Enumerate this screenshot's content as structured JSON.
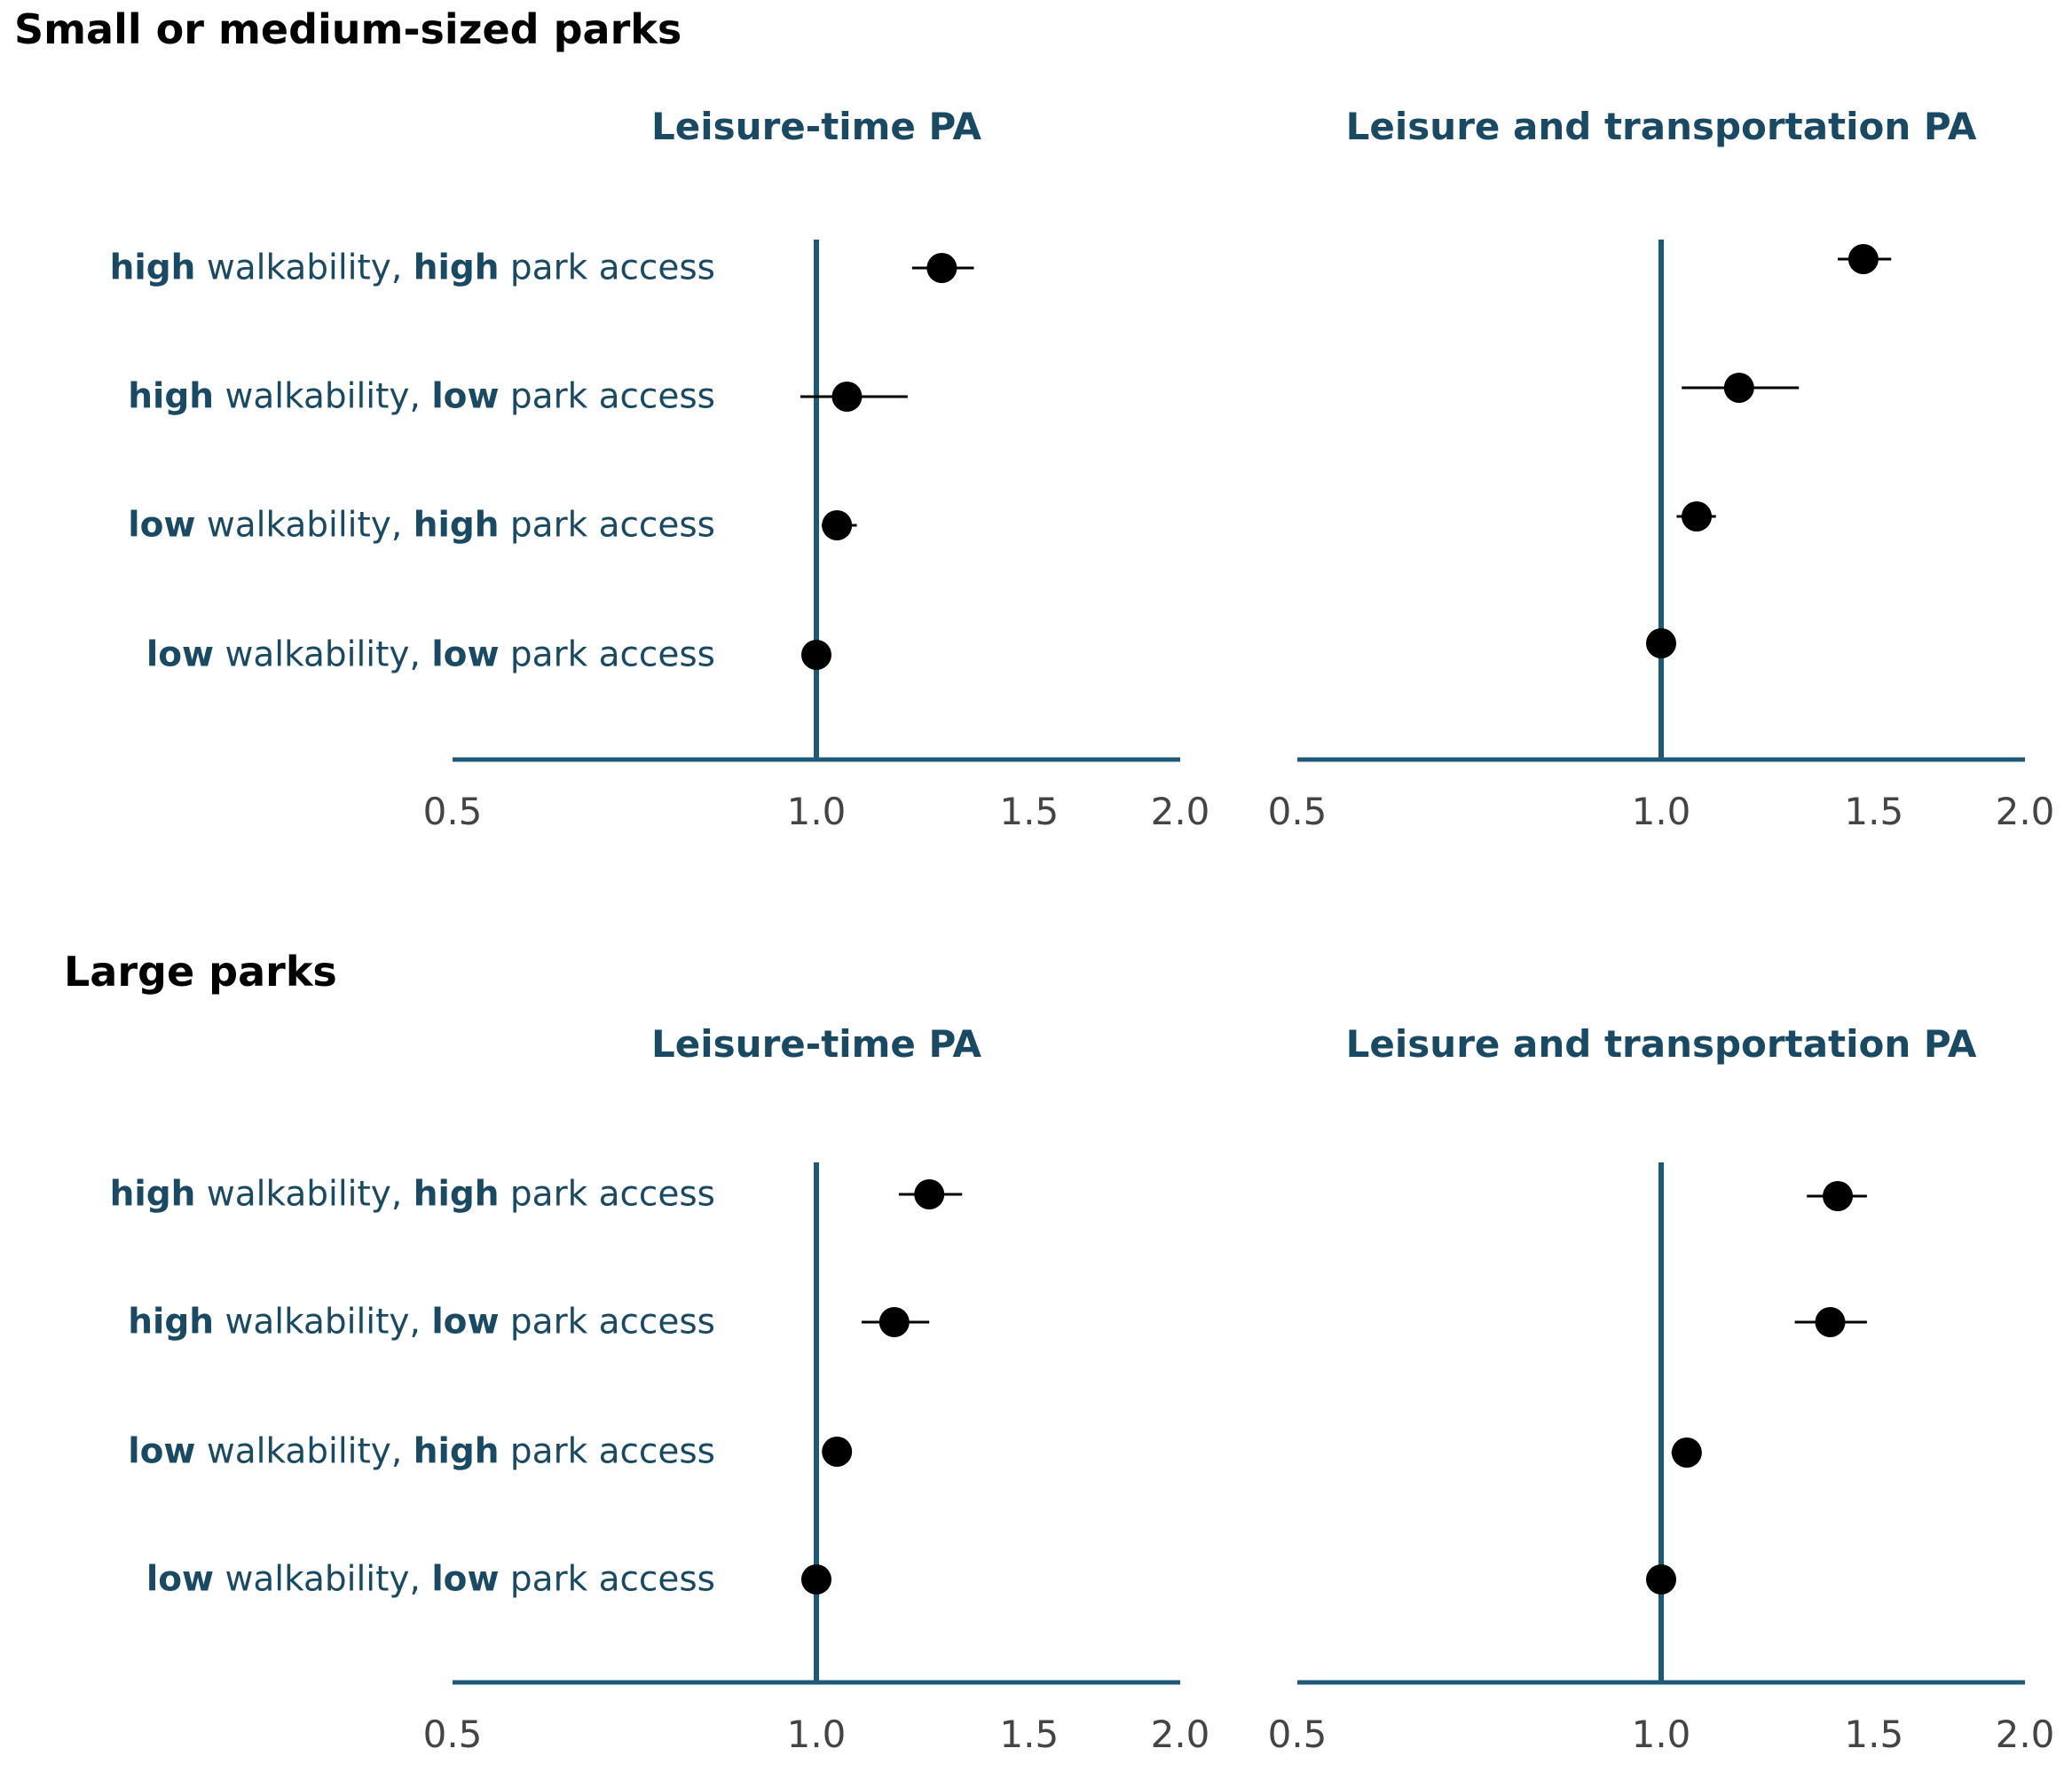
{
  "colors": {
    "axis": "#1e5a78",
    "label_text": "#1a4a63",
    "point": "#000000",
    "whisker": "#000000"
  },
  "row_label_parts": {
    "walkability_word": " walkability, ",
    "park_access_word": " park access"
  },
  "chart_data": [
    {
      "type": "scatter",
      "section": "Small or medium-sized parks",
      "title": "Leisure-time PA",
      "scale": "log",
      "xlim": [
        0.5,
        2.0
      ],
      "x_ticks": [
        "0.5",
        "1.0",
        "1.5",
        "2.0"
      ],
      "reference_line": 1.0,
      "categories": [
        {
          "walkability": "high",
          "park_access": "high"
        },
        {
          "walkability": "high",
          "park_access": "low"
        },
        {
          "walkability": "low",
          "park_access": "high"
        },
        {
          "walkability": "low",
          "park_access": "low"
        }
      ],
      "estimates": [
        1.27,
        1.06,
        1.04,
        1.0
      ],
      "ci_low": [
        1.2,
        0.97,
        1.01,
        1.0
      ],
      "ci_high": [
        1.35,
        1.19,
        1.08,
        1.0
      ]
    },
    {
      "type": "scatter",
      "section": "Small or medium-sized parks",
      "title": "Leisure and transportation PA",
      "scale": "log",
      "xlim": [
        0.5,
        2.0
      ],
      "x_ticks": [
        "0.5",
        "1.0",
        "1.5",
        "2.0"
      ],
      "reference_line": 1.0,
      "categories": [
        {
          "walkability": "high",
          "park_access": "high"
        },
        {
          "walkability": "high",
          "park_access": "low"
        },
        {
          "walkability": "low",
          "park_access": "high"
        },
        {
          "walkability": "low",
          "park_access": "low"
        }
      ],
      "estimates": [
        1.47,
        1.16,
        1.07,
        1.0
      ],
      "ci_low": [
        1.4,
        1.04,
        1.03,
        1.0
      ],
      "ci_high": [
        1.55,
        1.3,
        1.11,
        1.0
      ]
    },
    {
      "type": "scatter",
      "section": "Large parks",
      "title": "Leisure-time PA",
      "scale": "log",
      "xlim": [
        0.5,
        2.0
      ],
      "x_ticks": [
        "0.5",
        "1.0",
        "1.5",
        "2.0"
      ],
      "reference_line": 1.0,
      "categories": [
        {
          "walkability": "high",
          "park_access": "high"
        },
        {
          "walkability": "high",
          "park_access": "low"
        },
        {
          "walkability": "low",
          "park_access": "high"
        },
        {
          "walkability": "low",
          "park_access": "low"
        }
      ],
      "estimates": [
        1.24,
        1.16,
        1.04,
        1.0
      ],
      "ci_low": [
        1.17,
        1.09,
        1.02,
        1.0
      ],
      "ci_high": [
        1.32,
        1.24,
        1.07,
        1.0
      ]
    },
    {
      "type": "scatter",
      "section": "Large parks",
      "title": "Leisure and transportation PA",
      "scale": "log",
      "xlim": [
        0.5,
        2.0
      ],
      "x_ticks": [
        "0.5",
        "1.0",
        "1.5",
        "2.0"
      ],
      "reference_line": 1.0,
      "categories": [
        {
          "walkability": "high",
          "park_access": "high"
        },
        {
          "walkability": "high",
          "park_access": "low"
        },
        {
          "walkability": "low",
          "park_access": "high"
        },
        {
          "walkability": "low",
          "park_access": "low"
        }
      ],
      "estimates": [
        1.4,
        1.38,
        1.05,
        1.0
      ],
      "ci_low": [
        1.32,
        1.29,
        1.02,
        1.0
      ],
      "ci_high": [
        1.48,
        1.48,
        1.08,
        1.0
      ]
    }
  ],
  "section_titles": [
    "Small or medium-sized parks",
    "Large parks"
  ]
}
